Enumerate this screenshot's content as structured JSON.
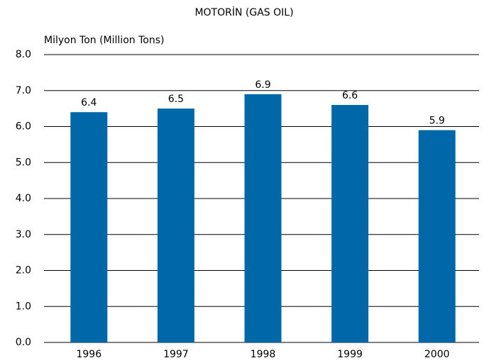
{
  "chart_data": {
    "type": "bar",
    "title": "MOTORİN (GAS OIL)",
    "y_label": "Milyon Ton (Million Tons)",
    "categories": [
      "1996",
      "1997",
      "1998",
      "1999",
      "2000"
    ],
    "values": [
      6.4,
      6.5,
      6.9,
      6.6,
      5.9
    ],
    "color": "#0067a8",
    "ylim": [
      0,
      8
    ],
    "yticks": [
      {
        "value": 0,
        "label": "0.0"
      },
      {
        "value": 1,
        "label": "1.0"
      },
      {
        "value": 2,
        "label": "2.0"
      },
      {
        "value": 3,
        "label": "3.0"
      },
      {
        "value": 4,
        "label": "4.0"
      },
      {
        "value": 5,
        "label": "5.0"
      },
      {
        "value": 6,
        "label": "6.0"
      },
      {
        "value": 7,
        "label": "7.0"
      },
      {
        "value": 8,
        "label": "8.0"
      }
    ],
    "grid": true
  }
}
